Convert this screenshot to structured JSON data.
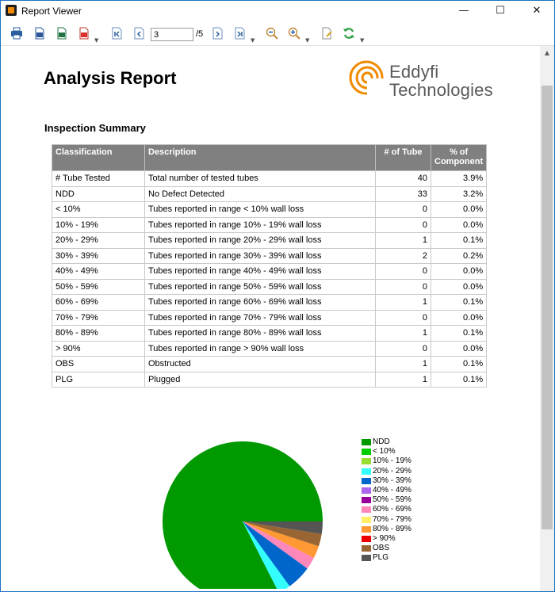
{
  "window": {
    "title": "Report Viewer",
    "minimize": "—",
    "maximize": "☐",
    "close": "✕"
  },
  "toolbar": {
    "current_page": "3",
    "total_pages": "/5"
  },
  "report": {
    "title": "Analysis Report",
    "logo_line1": "Eddyfi",
    "logo_line2": "Technologies",
    "section_title": "Inspection Summary"
  },
  "table": {
    "headers": [
      "Classification",
      "Description",
      "# of Tube",
      "% of Component"
    ],
    "rows": [
      [
        "# Tube Tested",
        "Total number of tested tubes",
        "40",
        "3.9%"
      ],
      [
        "NDD",
        "No Defect Detected",
        "33",
        "3.2%"
      ],
      [
        "< 10%",
        "Tubes reported in range < 10% wall loss",
        "0",
        "0.0%"
      ],
      [
        "10% - 19%",
        "Tubes reported in range 10% - 19% wall loss",
        "0",
        "0.0%"
      ],
      [
        "20% - 29%",
        "Tubes reported in range 20% - 29% wall loss",
        "1",
        "0.1%"
      ],
      [
        "30% - 39%",
        "Tubes reported in range 30% - 39% wall loss",
        "2",
        "0.2%"
      ],
      [
        "40% - 49%",
        "Tubes reported in range 40% - 49% wall loss",
        "0",
        "0.0%"
      ],
      [
        "50% - 59%",
        "Tubes reported in range 50% - 59% wall loss",
        "0",
        "0.0%"
      ],
      [
        "60% - 69%",
        "Tubes reported in range 60% - 69% wall loss",
        "1",
        "0.1%"
      ],
      [
        "70% - 79%",
        "Tubes reported in range 70% - 79% wall loss",
        "0",
        "0.0%"
      ],
      [
        "80% - 89%",
        "Tubes reported in range 80% - 89% wall loss",
        "1",
        "0.1%"
      ],
      [
        "> 90%",
        "Tubes reported in range > 90% wall loss",
        "0",
        "0.0%"
      ],
      [
        "OBS",
        "Obstructed",
        "1",
        "0.1%"
      ],
      [
        "PLG",
        "Plugged",
        "1",
        "0.1%"
      ]
    ]
  },
  "chart_data": {
    "type": "pie",
    "categories": [
      "NDD",
      "< 10%",
      "10% - 19%",
      "20% - 29%",
      "30% - 39%",
      "40% - 49%",
      "50% - 59%",
      "60% - 69%",
      "70% - 79%",
      "80% - 89%",
      "> 90%",
      "OBS",
      "PLG"
    ],
    "values": [
      33,
      0,
      0,
      1,
      2,
      0,
      0,
      1,
      0,
      1,
      0,
      1,
      1
    ],
    "colors": [
      "#009900",
      "#00cc00",
      "#99dd33",
      "#33ffff",
      "#0066cc",
      "#aa66ee",
      "#990099",
      "#ff88bb",
      "#ffee66",
      "#ff9933",
      "#ee0000",
      "#996633",
      "#555555"
    ],
    "legend_position": "right"
  },
  "icons": {
    "toolbar": [
      "print-icon",
      "export-word-icon",
      "export-excel-icon",
      "export-pdf-icon",
      "first-page-icon",
      "previous-page-icon",
      "next-page-icon",
      "last-page-icon",
      "zoom-out-icon",
      "zoom-in-icon",
      "page-setup-icon",
      "refresh-icon"
    ]
  },
  "colors": {
    "table_header_bg": "#808080",
    "logo_orange": "#f08a00"
  }
}
